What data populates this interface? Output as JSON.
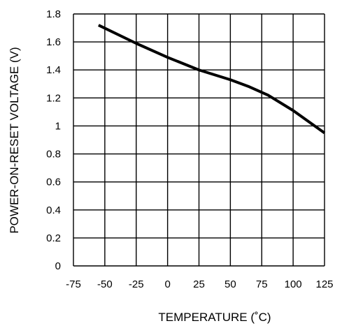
{
  "chart_data": {
    "type": "line",
    "xlabel": "TEMPERATURE (˚C)",
    "ylabel": "POWER-ON-RESET VOLTAGE (V)",
    "xlim": [
      -75,
      125
    ],
    "ylim": [
      0,
      1.8
    ],
    "x_ticks": [
      "-75",
      "-50",
      "-25",
      "0",
      "25",
      "50",
      "75",
      "100",
      "125"
    ],
    "y_ticks": [
      "0",
      "0.2",
      "0.4",
      "0.6",
      "0.8",
      "1",
      "1.2",
      "1.4",
      "1.6",
      "1.8"
    ],
    "grid": true,
    "series": [
      {
        "x": [
          -55,
          -25,
          0,
          25,
          50,
          65,
          80,
          100,
          125
        ],
        "y": [
          1.72,
          1.59,
          1.49,
          1.4,
          1.33,
          1.28,
          1.22,
          1.11,
          0.95
        ]
      }
    ],
    "colors": {
      "line": "#000000",
      "grid": "#000000"
    }
  }
}
